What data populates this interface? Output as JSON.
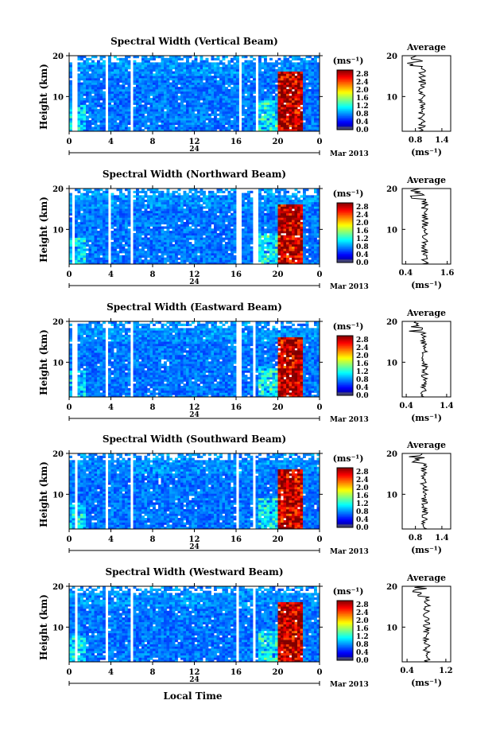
{
  "colorbar": {
    "unit": "(ms⁻¹)",
    "ticks": [
      "2.8",
      "2.4",
      "2.0",
      "1.6",
      "1.2",
      "0.8",
      "0.4",
      "0.0"
    ]
  },
  "xaxis": {
    "ticks": [
      "0",
      "4",
      "8",
      "12",
      "16",
      "20",
      "0"
    ],
    "date_day": "24",
    "date_month": "Mar 2013",
    "label": "Local Time"
  },
  "avg_title": "Average",
  "avg_unit": "(ms⁻¹)",
  "ylabel": "Height (km)",
  "chart_data": [
    {
      "type": "heatmap",
      "title": "Spectral Width (Vertical Beam)",
      "ylabel": "Height (km)",
      "y_ticks": [
        "20",
        "10"
      ],
      "x_range_hours": [
        0,
        24
      ],
      "y_range_km": [
        1.5,
        20
      ],
      "c_range": [
        0.0,
        3.0
      ],
      "gaps_hours": [
        [
          0.2,
          0.8
        ],
        [
          3.4,
          3.8
        ],
        [
          5.8,
          6.2
        ],
        [
          16.3,
          16.6
        ],
        [
          17.8,
          18.2
        ]
      ],
      "avg_profile": {
        "x_ticks": [
          "0.8",
          "1.4"
        ],
        "x_range": [
          0.5,
          1.6
        ],
        "mean": 0.95
      }
    },
    {
      "type": "heatmap",
      "title": "Spectral Width (Northward Beam)",
      "ylabel": "Height (km)",
      "y_ticks": [
        "20",
        "10"
      ],
      "x_range_hours": [
        0,
        24
      ],
      "y_range_km": [
        1.5,
        20
      ],
      "c_range": [
        0.0,
        3.0
      ],
      "gaps_hours": [
        [
          0.2,
          0.6
        ],
        [
          3.7,
          4.0
        ],
        [
          5.8,
          6.2
        ],
        [
          16.0,
          16.4
        ],
        [
          17.6,
          18.0
        ]
      ],
      "avg_profile": {
        "x_ticks": [
          "0.4",
          "1.6"
        ],
        "x_range": [
          0.3,
          1.7
        ],
        "mean": 0.95
      }
    },
    {
      "type": "heatmap",
      "title": "Spectral Width (Eastward Beam)",
      "ylabel": "Height (km)",
      "y_ticks": [
        "20",
        "10"
      ],
      "x_range_hours": [
        0,
        24
      ],
      "y_range_km": [
        1.5,
        20
      ],
      "c_range": [
        0.0,
        3.0
      ],
      "gaps_hours": [
        [
          0.4,
          0.7
        ],
        [
          3.4,
          3.8
        ],
        [
          5.8,
          6.2
        ],
        [
          16.1,
          16.5
        ],
        [
          17.6,
          17.9
        ]
      ],
      "avg_profile": {
        "x_ticks": [
          "0.4",
          "1.4"
        ],
        "x_range": [
          0.3,
          1.5
        ],
        "mean": 0.85
      }
    },
    {
      "type": "heatmap",
      "title": "Spectral Width (Southward Beam)",
      "ylabel": "Height (km)",
      "y_ticks": [
        "20",
        "10"
      ],
      "x_range_hours": [
        0,
        24
      ],
      "y_range_km": [
        1.5,
        20
      ],
      "c_range": [
        0.0,
        3.0
      ],
      "gaps_hours": [
        [
          0.6,
          0.9
        ],
        [
          3.4,
          3.8
        ],
        [
          5.8,
          6.2
        ],
        [
          16.0,
          16.3
        ],
        [
          17.6,
          17.9
        ]
      ],
      "avg_profile": {
        "x_ticks": [
          "0.8",
          "1.4"
        ],
        "x_range": [
          0.5,
          1.6
        ],
        "mean": 1.0
      }
    },
    {
      "type": "heatmap",
      "title": "Spectral Width (Westward Beam)",
      "ylabel": "Height (km)",
      "y_ticks": [
        "20",
        "10"
      ],
      "x_range_hours": [
        0,
        24
      ],
      "y_range_km": [
        1.5,
        20
      ],
      "c_range": [
        0.0,
        3.0
      ],
      "gaps_hours": [
        [
          0.6,
          0.9
        ],
        [
          3.4,
          3.8
        ],
        [
          5.8,
          6.1
        ],
        [
          16.0,
          16.3
        ],
        [
          17.6,
          17.9
        ]
      ],
      "avg_profile": {
        "x_ticks": [
          "0.4",
          "1.2"
        ],
        "x_range": [
          0.3,
          1.3
        ],
        "mean": 0.8
      }
    }
  ]
}
